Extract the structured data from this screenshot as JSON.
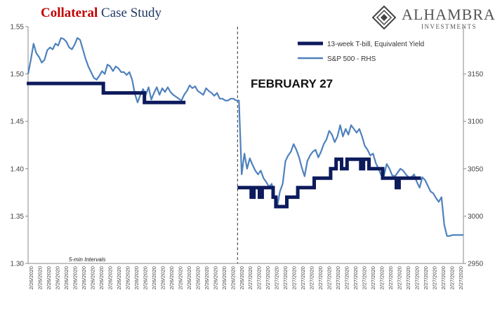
{
  "header": {
    "title_part1": "Collateral",
    "title_part2": " Case Study"
  },
  "logo": {
    "name": "ALHAMBRA",
    "subtitle": "INVESTMENTS"
  },
  "colors": {
    "tbill": "#0d1a5c",
    "spx": "#4f81bd",
    "title_red": "#c00000",
    "title_blue": "#1f3864"
  },
  "chart_data": {
    "type": "line",
    "annotation": "FEBRUARY 27",
    "note": "5-min Intervals",
    "legend_position": "top-right",
    "grid": false,
    "y_left": {
      "min": 1.3,
      "max": 1.55,
      "ticks": [
        "1.30",
        "1.35",
        "1.40",
        "1.45",
        "1.50",
        "1.55"
      ]
    },
    "y_right": {
      "min": 2950,
      "max": 3200,
      "ticks": [
        "2950",
        "3000",
        "3050",
        "3100",
        "3150"
      ]
    },
    "x_tick_labels": [
      "2/26/2020",
      "2/26/2020",
      "2/26/2020",
      "2/26/2020",
      "2/26/2020",
      "2/26/2020",
      "2/26/2020",
      "2/26/2020",
      "2/26/2020",
      "2/26/2020",
      "2/26/2020",
      "2/26/2020",
      "2/26/2020",
      "2/26/2020",
      "2/26/2020",
      "2/26/2020",
      "2/26/2020",
      "2/26/2020",
      "2/26/2020",
      "2/26/2020",
      "2/26/2020",
      "2/26/2020",
      "2/26/2020",
      "2/26/2020",
      "2/26/2020",
      "2/27/2020",
      "2/27/2020",
      "2/27/2020",
      "2/27/2020",
      "2/27/2020",
      "2/27/2020",
      "2/27/2020",
      "2/27/2020",
      "2/27/2020",
      "2/27/2020",
      "2/27/2020",
      "2/27/2020",
      "2/27/2020",
      "2/27/2020",
      "2/27/2020",
      "2/27/2020",
      "2/27/2020",
      "2/27/2020",
      "2/27/2020",
      "2/27/2020",
      "2/27/2020",
      "2/27/2020",
      "2/27/2020",
      "2/27/2020",
      "2/27/2020"
    ],
    "divider_index": 77,
    "series": [
      {
        "name": "13-week T-bill, Equivalent Yield",
        "axis": "left",
        "values": [
          1.49,
          1.49,
          1.49,
          1.49,
          1.49,
          1.49,
          1.49,
          1.49,
          1.49,
          1.49,
          1.49,
          1.49,
          1.49,
          1.49,
          1.49,
          1.49,
          1.49,
          1.49,
          1.49,
          1.49,
          1.49,
          1.49,
          1.49,
          1.49,
          1.49,
          1.49,
          1.49,
          1.49,
          1.48,
          1.48,
          1.48,
          1.48,
          1.48,
          1.48,
          1.48,
          1.48,
          1.48,
          1.48,
          1.48,
          1.48,
          1.48,
          1.48,
          1.48,
          1.47,
          1.47,
          1.47,
          1.47,
          1.47,
          1.47,
          1.47,
          1.47,
          1.47,
          1.47,
          1.47,
          1.47,
          1.47,
          1.47,
          1.47,
          null,
          null,
          null,
          null,
          null,
          null,
          null,
          null,
          null,
          null,
          null,
          null,
          null,
          null,
          null,
          null,
          null,
          null,
          null,
          1.38,
          1.38,
          1.38,
          1.38,
          1.38,
          1.37,
          1.38,
          1.38,
          1.37,
          1.38,
          1.38,
          1.38,
          1.38,
          1.37,
          1.36,
          1.36,
          1.36,
          1.36,
          1.37,
          1.37,
          1.37,
          1.37,
          1.38,
          1.38,
          1.38,
          1.38,
          1.38,
          1.38,
          1.39,
          1.39,
          1.39,
          1.39,
          1.39,
          1.39,
          1.4,
          1.4,
          1.41,
          1.41,
          1.4,
          1.4,
          1.41,
          1.41,
          1.41,
          1.41,
          1.41,
          1.4,
          1.41,
          1.41,
          1.4,
          1.4,
          1.4,
          1.4,
          1.4,
          1.39,
          1.39,
          1.39,
          1.39,
          1.39,
          1.38,
          1.39,
          1.39,
          1.39,
          1.39,
          1.39,
          1.39,
          1.39,
          1.39,
          null,
          null,
          null,
          null,
          null,
          null,
          null,
          null,
          null,
          null,
          null,
          null,
          null,
          null,
          null
        ]
      },
      {
        "name": "S&P 500 - RHS",
        "axis": "right",
        "values": [
          3150,
          3165,
          3182,
          3172,
          3168,
          3162,
          3165,
          3175,
          3178,
          3176,
          3182,
          3180,
          3188,
          3187,
          3184,
          3178,
          3176,
          3181,
          3188,
          3186,
          3176,
          3166,
          3158,
          3152,
          3146,
          3144,
          3148,
          3153,
          3150,
          3160,
          3158,
          3153,
          3158,
          3156,
          3152,
          3152,
          3149,
          3152,
          3144,
          3129,
          3120,
          3128,
          3134,
          3128,
          3136,
          3123,
          3130,
          3136,
          3128,
          3135,
          3131,
          3136,
          3131,
          3128,
          3126,
          3124,
          3122,
          3128,
          3132,
          3138,
          3135,
          3137,
          3132,
          3130,
          3128,
          3135,
          3132,
          3130,
          3127,
          3130,
          3124,
          3124,
          3122,
          3122,
          3124,
          3124,
          3122,
          3122,
          3044,
          3066,
          3050,
          3061,
          3054,
          3048,
          3044,
          3048,
          3040,
          3036,
          3031,
          3034,
          3020,
          3010,
          3026,
          3034,
          3058,
          3064,
          3068,
          3076,
          3070,
          3062,
          3051,
          3042,
          3058,
          3064,
          3068,
          3070,
          3062,
          3068,
          3076,
          3081,
          3090,
          3086,
          3078,
          3084,
          3096,
          3084,
          3092,
          3086,
          3096,
          3092,
          3088,
          3092,
          3084,
          3074,
          3070,
          3064,
          3066,
          3056,
          3050,
          3043,
          3043,
          3055,
          3050,
          3043,
          3042,
          3046,
          3050,
          3048,
          3044,
          3041,
          3041,
          3044,
          3036,
          3030,
          3041,
          3038,
          3032,
          3026,
          3024,
          3019,
          3015,
          3020,
          2991,
          2979,
          2979,
          2980,
          2980,
          2980,
          2980,
          2980
        ]
      }
    ]
  }
}
